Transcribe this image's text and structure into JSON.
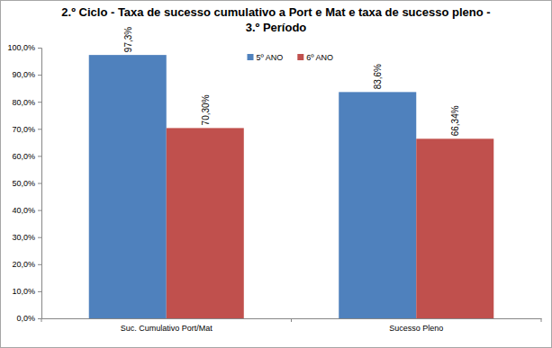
{
  "chart_data": {
    "type": "bar",
    "title": "2.º Ciclo - Taxa de sucesso cumulativo a Port e Mat e taxa de sucesso pleno - 3.º Período",
    "categories": [
      "Suc. Cumulativo Port/Mat",
      "Sucesso Pleno"
    ],
    "series": [
      {
        "name": "5º ANO",
        "color": "#4f81bd",
        "values": [
          97.3,
          83.6
        ],
        "value_labels": [
          "97,3%",
          "83,6%"
        ]
      },
      {
        "name": "6º ANO",
        "color": "#c0504d",
        "values": [
          70.3,
          66.34
        ],
        "value_labels": [
          "70,30%",
          "66,34%"
        ]
      }
    ],
    "ylim": [
      0,
      100
    ],
    "yticks": [
      {
        "value": 0,
        "label": "0,0%"
      },
      {
        "value": 10,
        "label": "10,0%"
      },
      {
        "value": 20,
        "label": "20,0%"
      },
      {
        "value": 30,
        "label": "30,0%"
      },
      {
        "value": 40,
        "label": "40,0%"
      },
      {
        "value": 50,
        "label": "50,0%"
      },
      {
        "value": 60,
        "label": "60,0%"
      },
      {
        "value": 70,
        "label": "70,0%"
      },
      {
        "value": 80,
        "label": "80,0%"
      },
      {
        "value": 90,
        "label": "90,0%"
      },
      {
        "value": 100,
        "label": "100,0%"
      }
    ],
    "grid": false,
    "legend": "top",
    "data_labels": true
  }
}
